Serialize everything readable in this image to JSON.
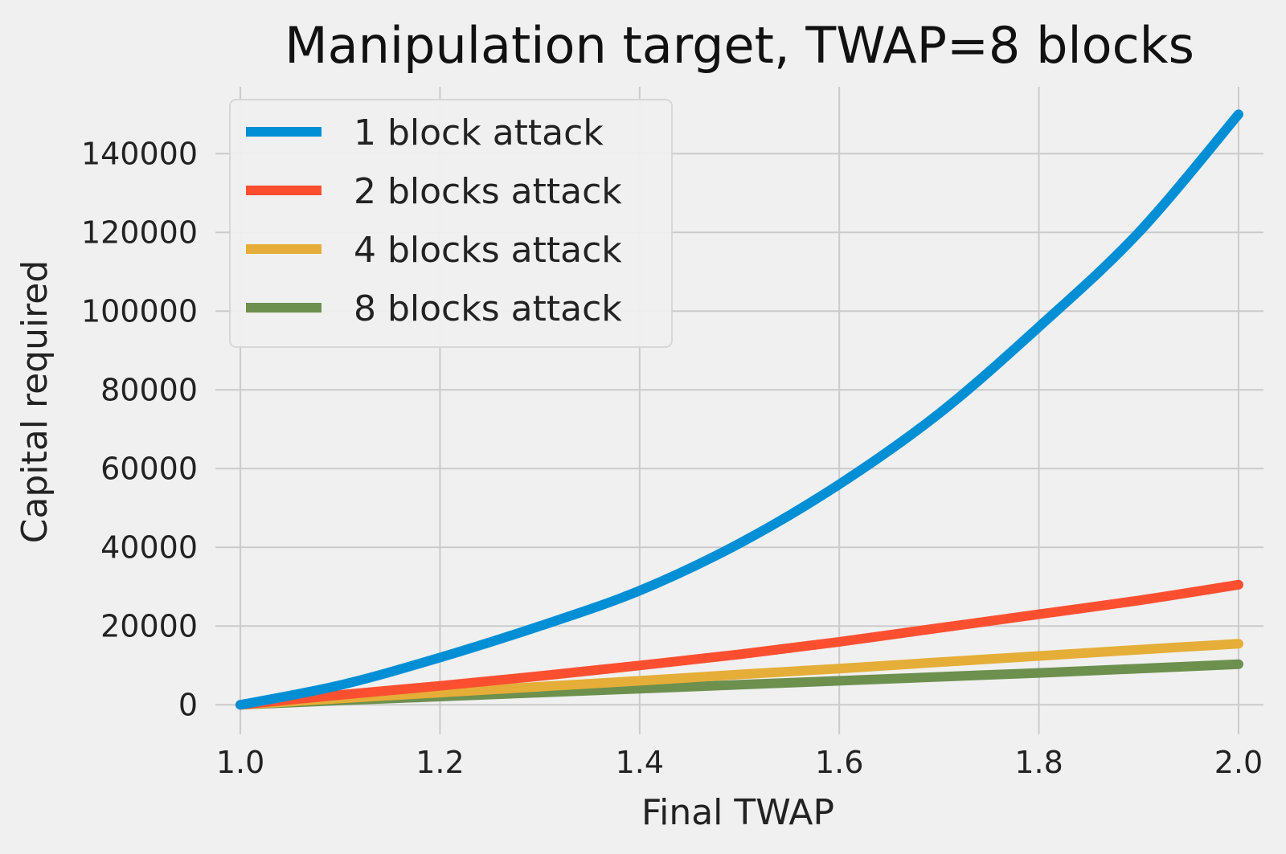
{
  "chart_data": {
    "type": "line",
    "title": "Manipulation target, TWAP=8 blocks",
    "xlabel": "Final TWAP",
    "ylabel": "Capital required",
    "xlim": [
      0.975,
      2.025
    ],
    "ylim": [
      -7500,
      157000
    ],
    "xticks": [
      1.0,
      1.2,
      1.4,
      1.6,
      1.8,
      2.0
    ],
    "xtick_labels": [
      "1.0",
      "1.2",
      "1.4",
      "1.6",
      "1.8",
      "2.0"
    ],
    "yticks": [
      0,
      20000,
      40000,
      60000,
      80000,
      100000,
      120000,
      140000
    ],
    "ytick_labels": [
      "0",
      "20000",
      "40000",
      "60000",
      "80000",
      "100000",
      "120000",
      "140000"
    ],
    "grid": true,
    "legend": "top-left",
    "x": [
      1.0,
      1.1,
      1.2,
      1.3,
      1.4,
      1.5,
      1.6,
      1.7,
      1.8,
      1.9,
      2.0
    ],
    "series": [
      {
        "name": "1 block attack",
        "color": "#008fd5",
        "values": [
          0,
          5000,
          12000,
          20000,
          29000,
          41000,
          56000,
          74000,
          96000,
          120000,
          150000
        ]
      },
      {
        "name": "2 blocks attack",
        "color": "#fc4f30",
        "values": [
          0,
          2500,
          4800,
          7300,
          10000,
          12800,
          16000,
          19500,
          23000,
          26500,
          30500
        ]
      },
      {
        "name": "4 blocks attack",
        "color": "#e5ae38",
        "values": [
          0,
          1600,
          3100,
          4600,
          6100,
          7700,
          9200,
          10800,
          12400,
          14000,
          15500
        ]
      },
      {
        "name": "8 blocks attack",
        "color": "#6d904f",
        "values": [
          0,
          1100,
          2100,
          3100,
          4100,
          5100,
          6100,
          7100,
          8100,
          9200,
          10300
        ]
      }
    ]
  }
}
